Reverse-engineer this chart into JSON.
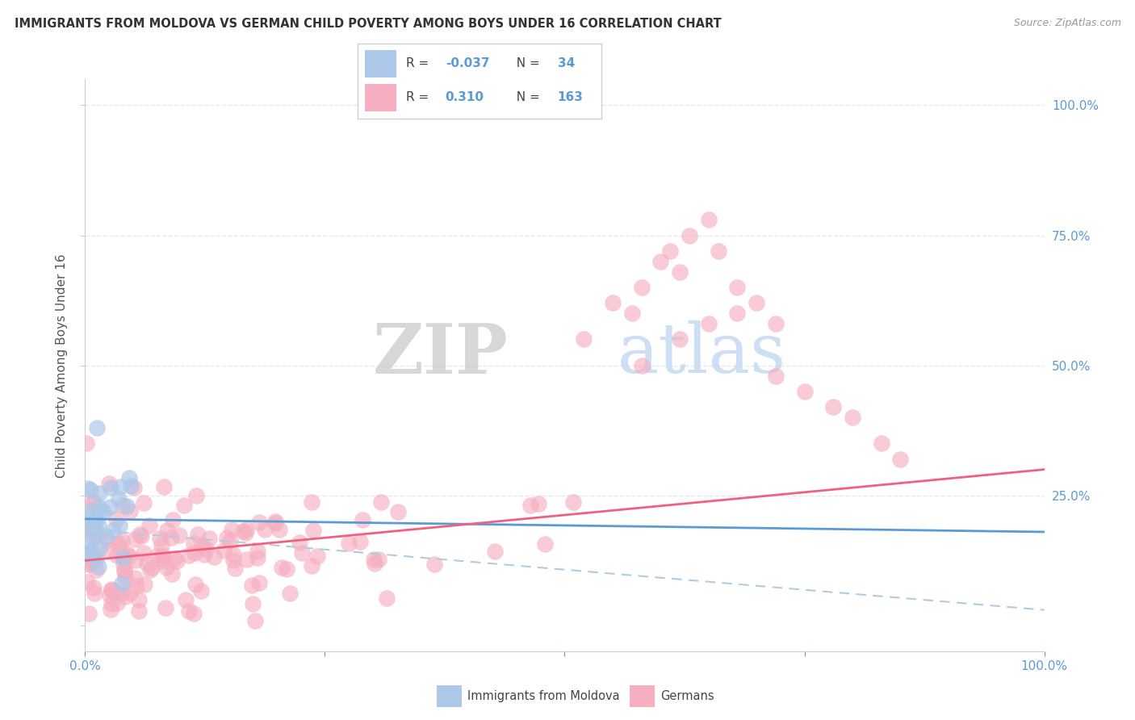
{
  "title": "IMMIGRANTS FROM MOLDOVA VS GERMAN CHILD POVERTY AMONG BOYS UNDER 16 CORRELATION CHART",
  "source": "Source: ZipAtlas.com",
  "ylabel": "Child Poverty Among Boys Under 16",
  "color_blue": "#adc8e8",
  "color_pink": "#f5afc0",
  "color_blue_line": "#5b9bd5",
  "color_pink_line": "#f06080",
  "color_blue_dash": "#b0cce0",
  "background_color": "#ffffff",
  "grid_color": "#e8e8e8",
  "title_color": "#333333",
  "source_color": "#999999",
  "axis_color": "#5b9bd5",
  "ylabel_color": "#555555",
  "legend_text_color": "#5b9bd5",
  "watermark_zip_color": "#d8d8d8",
  "watermark_atlas_color": "#c8ddf0"
}
